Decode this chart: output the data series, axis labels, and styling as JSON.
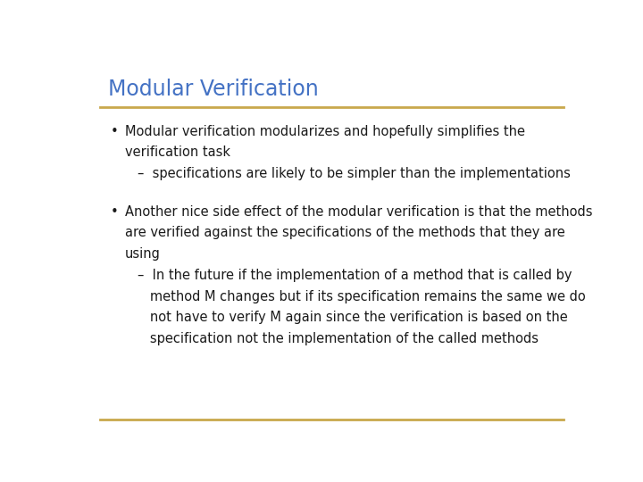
{
  "title": "Modular Verification",
  "title_color": "#4472C4",
  "title_fontsize": 17,
  "separator_color": "#C9A84C",
  "background_color": "#FFFFFF",
  "body_fontsize": 10.5,
  "body_color": "#1A1A1A",
  "font_family": "DejaVu Sans",
  "bullet1_line1": "Modular verification modularizes and hopefully simplifies the",
  "bullet1_line2": "verification task",
  "bullet1_sub": "–  specifications are likely to be simpler than the implementations",
  "bullet2_line1": "Another nice side effect of the modular verification is that the methods",
  "bullet2_line2": "are verified against the specifications of the methods that they are",
  "bullet2_line3": "using",
  "bullet2_sub_line1": "–  In the future if the implementation of a method that is called by",
  "bullet2_sub_line2": "   method M changes but if its specification remains the same we do",
  "bullet2_sub_line3": "   not have to verify M again since the verification is based on the",
  "bullet2_sub_line4": "   specification not the implementation of the called methods"
}
